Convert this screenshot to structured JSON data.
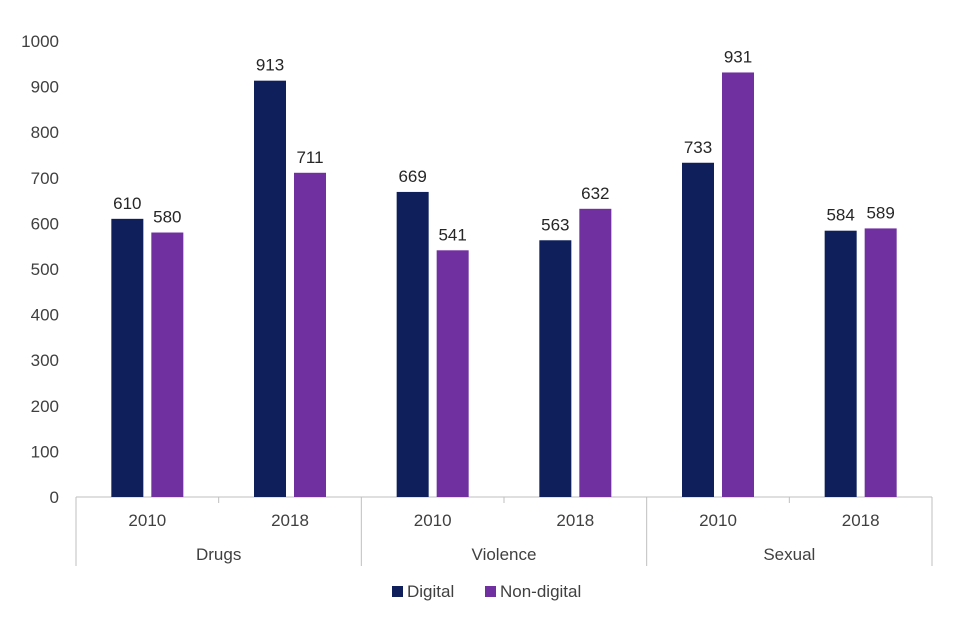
{
  "chart_data": {
    "type": "bar",
    "title": "",
    "xlabel": "",
    "ylabel": "",
    "ylim": [
      0,
      1000
    ],
    "yticks": [
      0,
      100,
      200,
      300,
      400,
      500,
      600,
      700,
      800,
      900,
      1000
    ],
    "groups": [
      {
        "name": "Drugs",
        "categories": [
          "2010",
          "2018"
        ]
      },
      {
        "name": "Violence",
        "categories": [
          "2010",
          "2018"
        ]
      },
      {
        "name": "Sexual",
        "categories": [
          "2010",
          "2018"
        ]
      }
    ],
    "series": [
      {
        "name": "Digital",
        "color": "#0e1f5b",
        "values": [
          610,
          913,
          669,
          563,
          733,
          584
        ]
      },
      {
        "name": "Non-digital",
        "color": "#7030a0",
        "values": [
          580,
          711,
          541,
          632,
          931,
          589
        ]
      }
    ],
    "legend_position": "bottom",
    "grid": false
  }
}
